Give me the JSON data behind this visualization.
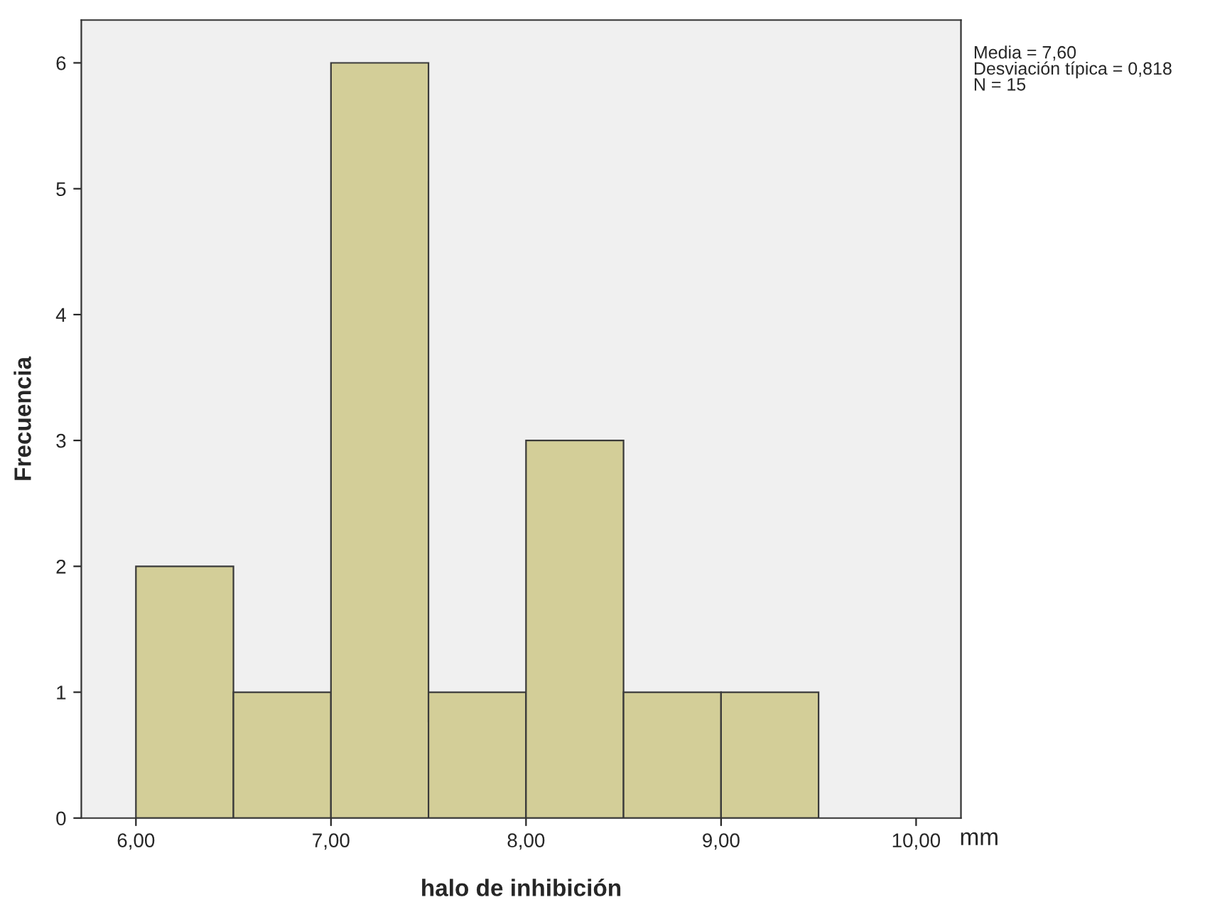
{
  "chart_data": {
    "type": "histogram",
    "xlabel": "halo de inhibición",
    "ylabel": "Frecuencia",
    "bins": [
      6.0,
      6.5,
      7.0,
      7.5,
      8.0,
      8.5,
      9.0,
      9.5
    ],
    "values": [
      2,
      1,
      6,
      1,
      3,
      1,
      1
    ],
    "color": "#d3ce98",
    "xlim": [
      5.72,
      10.23
    ],
    "ylim": [
      0,
      6.34
    ],
    "xticks": [
      {
        "value": 6,
        "label": "6,00"
      },
      {
        "value": 7,
        "label": "7,00"
      },
      {
        "value": 8,
        "label": "8,00"
      },
      {
        "value": 9,
        "label": "9,00"
      },
      {
        "value": 10,
        "label": "10,00"
      }
    ],
    "yticks": [
      0,
      1,
      2,
      3,
      4,
      5,
      6
    ],
    "grid": false,
    "annotations": [
      "Media = 7,60\nDesviación típica = 0,818\nN = 15",
      "mm"
    ]
  }
}
